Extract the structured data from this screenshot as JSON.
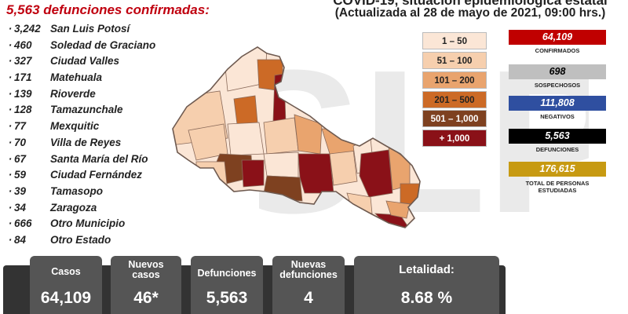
{
  "title": "5,563 defunciones confirmadas:",
  "header": {
    "title_line": "COVID-19, situación epidemiológica estatal",
    "date_line": "(Actualizada al 28 de mayo de 2021, 09:00 hrs.)"
  },
  "municipalities": [
    {
      "count": "3,242",
      "name": "San Luis Potosí"
    },
    {
      "count": "460",
      "name": "Soledad de Graciano"
    },
    {
      "count": "327",
      "name": "Ciudad Valles"
    },
    {
      "count": "171",
      "name": "Matehuala"
    },
    {
      "count": "139",
      "name": "Rioverde"
    },
    {
      "count": "128",
      "name": "Tamazunchale"
    },
    {
      "count": "77",
      "name": "Mexquitic"
    },
    {
      "count": "70",
      "name": "Villa de Reyes"
    },
    {
      "count": "67",
      "name": "Santa María del Río"
    },
    {
      "count": "59",
      "name": "Ciudad Fernández"
    },
    {
      "count": "39",
      "name": "Tamasopo"
    },
    {
      "count": "34",
      "name": "Zaragoza"
    },
    {
      "count": "666",
      "name": "Otro Municipio"
    },
    {
      "count": "84",
      "name": "Otro Estado"
    }
  ],
  "legend": [
    {
      "label": "1 – 50",
      "color": "#fbe6d6",
      "text_color": "#222222"
    },
    {
      "label": "51 – 100",
      "color": "#f6cfae",
      "text_color": "#222222"
    },
    {
      "label": "101 – 200",
      "color": "#e9a46e",
      "text_color": "#222222"
    },
    {
      "label": "201 – 500",
      "color": "#cc6a26",
      "text_color": "#222222"
    },
    {
      "label": "501 – 1,000",
      "color": "#7e4120",
      "text_color": "#ffffff"
    },
    {
      "label": "+ 1,000",
      "color": "#8a1118",
      "text_color": "#ffffff"
    }
  ],
  "stats": [
    {
      "value": "64,109",
      "label": "CONFIRMADOS",
      "bg": "#c00000",
      "fg": "#ffffff"
    },
    {
      "value": "698",
      "label": "SOSPECHOSOS",
      "bg": "#bfbfbf",
      "fg": "#000000"
    },
    {
      "value": "111,808",
      "label": "NEGATIVOS",
      "bg": "#2f4fa0",
      "fg": "#ffffff"
    },
    {
      "value": "5,563",
      "label": "DEFUNCIONES",
      "bg": "#000000",
      "fg": "#ffffff"
    },
    {
      "value": "176,615",
      "label": "TOTAL DE PERSONAS ESTUDIADAS",
      "bg": "#c79a12",
      "fg": "#ffffff"
    }
  ],
  "summary": {
    "casos": {
      "label": "Casos",
      "value": "64,109"
    },
    "nuevos_casos": {
      "label": "Nuevos casos",
      "value": "46*"
    },
    "defunciones": {
      "label": "Defunciones",
      "value": "5,563"
    },
    "nuevas_defunciones": {
      "label": "Nuevas defunciones",
      "value": "4"
    },
    "letalidad": {
      "label": "Letalidad:",
      "value": "8.68 %"
    }
  },
  "watermark_text": "SLP"
}
